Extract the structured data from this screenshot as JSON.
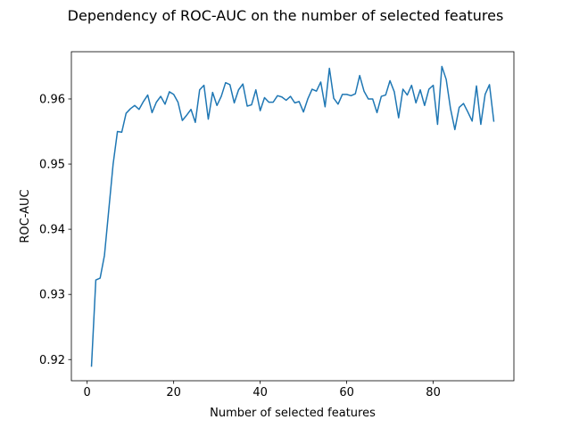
{
  "chart_data": {
    "type": "line",
    "title": "Dependency of ROC-AUC on the number of selected features",
    "xlabel": "Number of selected features",
    "ylabel": "ROC-AUC",
    "xlim": [
      -3.65,
      98.65
    ],
    "ylim": [
      0.91675,
      0.96725
    ],
    "xticks": [
      0,
      20,
      40,
      60,
      80
    ],
    "yticks": [
      0.92,
      0.93,
      0.94,
      0.95,
      0.96
    ],
    "ytick_labels": [
      "0.92",
      "0.93",
      "0.94",
      "0.95",
      "0.96"
    ],
    "grid": false,
    "series": [
      {
        "color": "#1f77b4",
        "x": [
          1,
          2,
          3,
          4,
          5,
          6,
          7,
          8,
          9,
          10,
          11,
          12,
          13,
          14,
          15,
          16,
          17,
          18,
          19,
          20,
          21,
          22,
          23,
          24,
          25,
          26,
          27,
          28,
          29,
          30,
          31,
          32,
          33,
          34,
          35,
          36,
          37,
          38,
          39,
          40,
          41,
          42,
          43,
          44,
          45,
          46,
          47,
          48,
          49,
          50,
          51,
          52,
          53,
          54,
          55,
          56,
          57,
          58,
          59,
          60,
          61,
          62,
          63,
          64,
          65,
          66,
          67,
          68,
          69,
          70,
          71,
          72,
          73,
          74,
          75,
          76,
          77,
          78,
          79,
          80,
          81,
          82,
          83,
          84,
          85,
          86,
          87,
          88,
          89,
          90,
          91,
          92,
          93,
          94
        ],
        "y": [
          0.919,
          0.9322,
          0.9325,
          0.936,
          0.943,
          0.95,
          0.955,
          0.9549,
          0.9578,
          0.9585,
          0.959,
          0.9584,
          0.9596,
          0.9606,
          0.9579,
          0.9595,
          0.9604,
          0.9592,
          0.9611,
          0.9607,
          0.9595,
          0.9567,
          0.9575,
          0.9584,
          0.9564,
          0.9614,
          0.9621,
          0.9569,
          0.961,
          0.959,
          0.9604,
          0.9625,
          0.9622,
          0.9594,
          0.9614,
          0.9623,
          0.9589,
          0.9591,
          0.9614,
          0.9582,
          0.9602,
          0.9595,
          0.9595,
          0.9605,
          0.9603,
          0.9598,
          0.9604,
          0.9594,
          0.9596,
          0.958,
          0.96,
          0.9615,
          0.9612,
          0.9626,
          0.9588,
          0.9647,
          0.9601,
          0.9592,
          0.9607,
          0.9607,
          0.9605,
          0.9608,
          0.9636,
          0.9612,
          0.96,
          0.96,
          0.9579,
          0.9604,
          0.9606,
          0.9628,
          0.9611,
          0.9571,
          0.9615,
          0.9606,
          0.9621,
          0.9594,
          0.9614,
          0.959,
          0.9615,
          0.9621,
          0.9561,
          0.965,
          0.963,
          0.9585,
          0.9553,
          0.9587,
          0.9593,
          0.958,
          0.9566,
          0.962,
          0.9561,
          0.9607,
          0.9622,
          0.9566
        ]
      }
    ]
  }
}
